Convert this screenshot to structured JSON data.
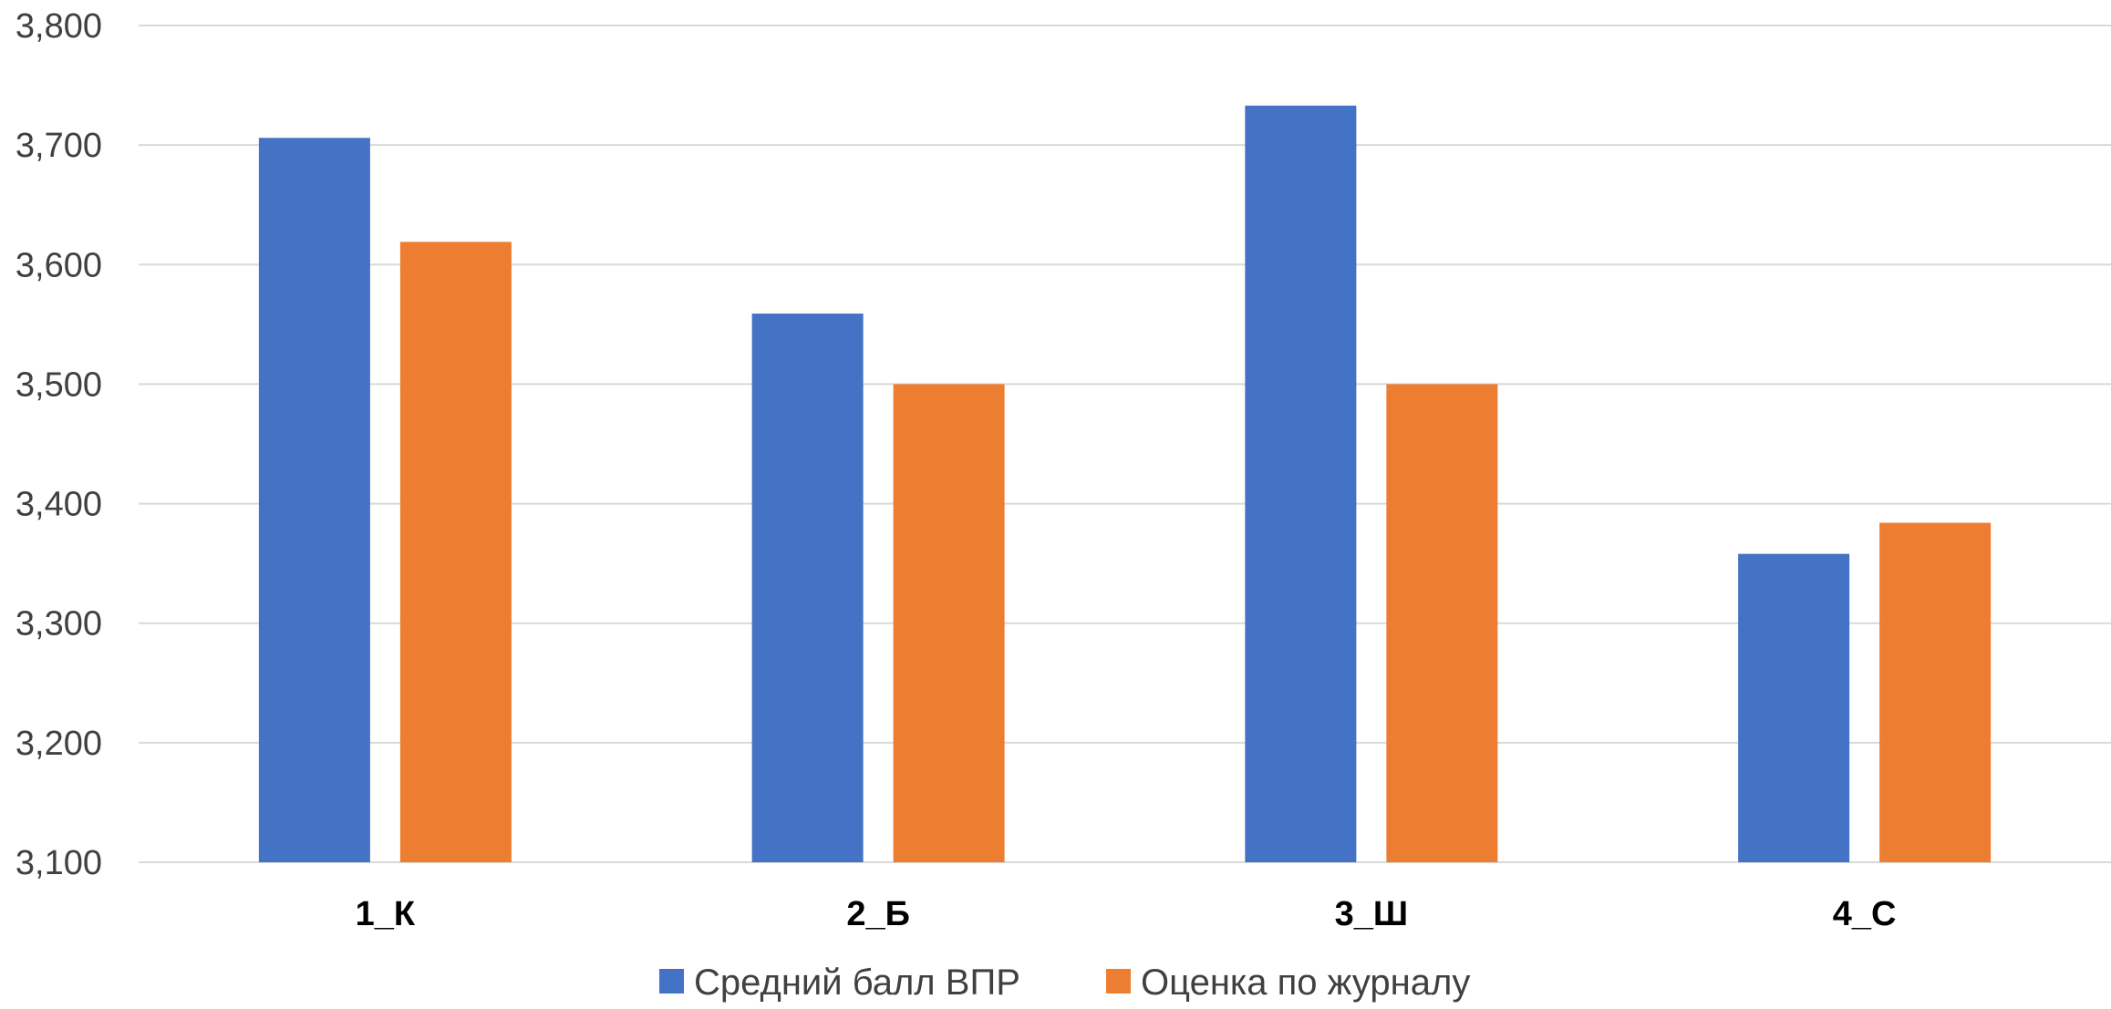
{
  "chart_data": {
    "type": "bar",
    "categories": [
      "1_К",
      "2_Б",
      "3_Ш",
      "4_С"
    ],
    "series": [
      {
        "name": "Средний балл ВПР",
        "color": "#4472C4",
        "values": [
          3.706,
          3.559,
          3.733,
          3.358
        ]
      },
      {
        "name": "Оценка по журналу",
        "color": "#ED7D31",
        "values": [
          3.619,
          3.5,
          3.5,
          3.384
        ]
      }
    ],
    "y_ticks": [
      "3,100",
      "3,200",
      "3,300",
      "3,400",
      "3,500",
      "3,600",
      "3,700",
      "3,800"
    ],
    "ylim": [
      3.1,
      3.8
    ],
    "grid": true,
    "legend_position": "bottom",
    "title": "",
    "xlabel": "",
    "ylabel": ""
  }
}
